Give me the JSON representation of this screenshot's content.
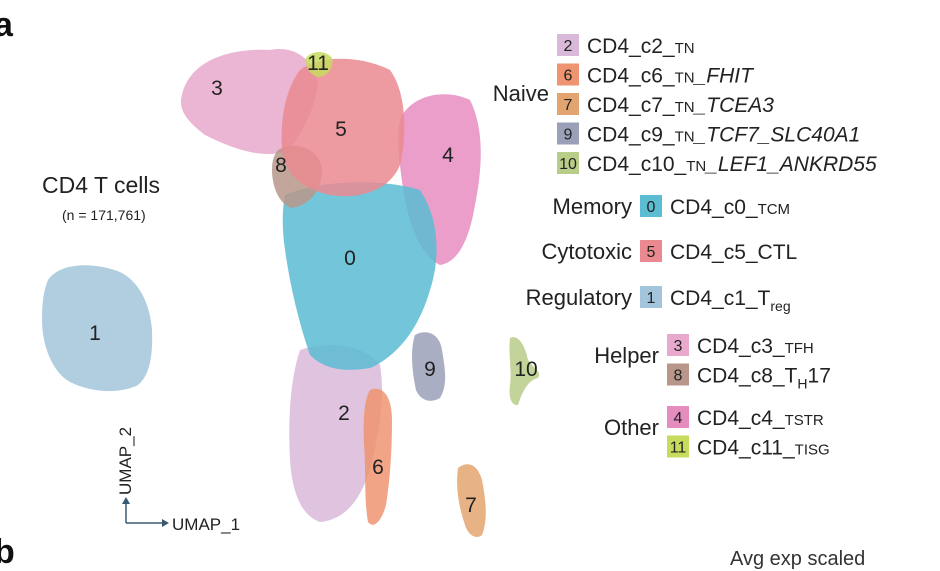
{
  "panel_labels": [
    "a",
    "b"
  ],
  "colorbar_title_partial": "Avg exp scaled",
  "chart_data": {
    "type": "scatter",
    "title": "CD4 T cells",
    "subtitle": "(n = 171,761)",
    "xlabel": "UMAP_1",
    "ylabel": "UMAP_2",
    "clusters": [
      {
        "id": "0",
        "label": "0",
        "color": "#5bbcd2"
      },
      {
        "id": "1",
        "label": "1",
        "color": "#a3c5dc"
      },
      {
        "id": "2",
        "label": "2",
        "color": "#d9b8d9"
      },
      {
        "id": "3",
        "label": "3",
        "color": "#e8a9cc"
      },
      {
        "id": "4",
        "label": "4",
        "color": "#e68dc0"
      },
      {
        "id": "5",
        "label": "5",
        "color": "#ea8a90"
      },
      {
        "id": "6",
        "label": "6",
        "color": "#ef9471"
      },
      {
        "id": "7",
        "label": "7",
        "color": "#e3a56f"
      },
      {
        "id": "8",
        "label": "8",
        "color": "#b8978a"
      },
      {
        "id": "9",
        "label": "9",
        "color": "#9aa0b8"
      },
      {
        "id": "10",
        "label": "10",
        "color": "#b8cd88"
      },
      {
        "id": "11",
        "label": "11",
        "color": "#c7dc5e"
      }
    ],
    "legend": [
      {
        "group": "Naive",
        "items": [
          {
            "id": "2",
            "name": "CD4_c2_",
            "cell": "TN",
            "suffix": "",
            "suffix_italic": false
          },
          {
            "id": "6",
            "name": "CD4_c6_",
            "cell": "TN",
            "suffix": "_FHIT",
            "suffix_italic": true
          },
          {
            "id": "7",
            "name": "CD4_c7_",
            "cell": "TN",
            "suffix": "_TCEA3",
            "suffix_italic": true
          },
          {
            "id": "9",
            "name": "CD4_c9_",
            "cell": "TN",
            "suffix": "_TCF7_SLC40A1",
            "suffix_italic": true
          },
          {
            "id": "10",
            "name": "CD4_c10_",
            "cell": "TN",
            "suffix": "_LEF1_ANKRD55",
            "suffix_italic": true
          }
        ]
      },
      {
        "group": "Memory",
        "items": [
          {
            "id": "0",
            "name": "CD4_c0_",
            "cell": "TCM",
            "suffix": "",
            "suffix_italic": false
          }
        ]
      },
      {
        "group": "Cytotoxic",
        "items": [
          {
            "id": "5",
            "name": "CD4_c5_CTL",
            "cell": "",
            "suffix": "",
            "suffix_italic": false
          }
        ]
      },
      {
        "group": "Regulatory",
        "items": [
          {
            "id": "1",
            "name": "CD4_c1_T",
            "cell": "",
            "sub": "reg",
            "suffix": "",
            "suffix_italic": false
          }
        ]
      },
      {
        "group": "Helper",
        "items": [
          {
            "id": "3",
            "name": "CD4_c3_",
            "cell": "TFH",
            "suffix": "",
            "suffix_italic": false
          },
          {
            "id": "8",
            "name": "CD4_c8_T",
            "cell": "",
            "sub": "H",
            "suffix": "17",
            "suffix_italic": false
          }
        ]
      },
      {
        "group": "Other",
        "items": [
          {
            "id": "4",
            "name": "CD4_c4_",
            "cell": "TSTR",
            "suffix": "",
            "suffix_italic": false
          },
          {
            "id": "11",
            "name": "CD4_c11_",
            "cell": "TISG",
            "suffix": "",
            "suffix_italic": false
          }
        ]
      }
    ]
  }
}
